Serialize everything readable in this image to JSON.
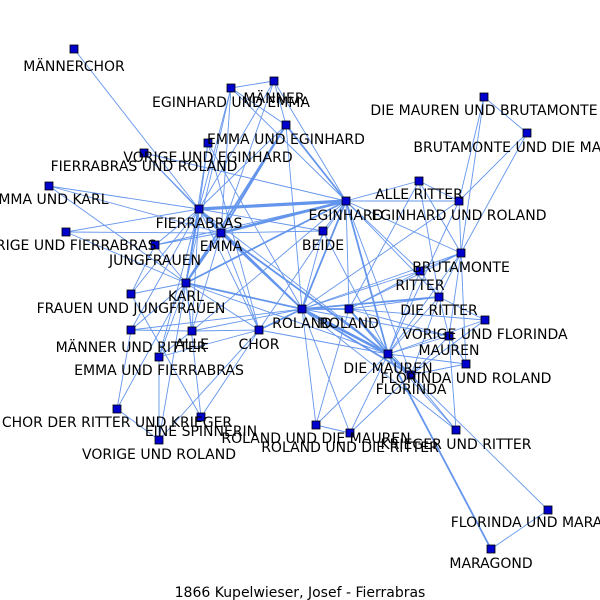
{
  "caption": "1866  Kupelwieser,  Josef  -  Fierrabras",
  "colors": {
    "edge": "#6495ed",
    "node_fill": "#0000cd",
    "node_stroke": "#000000",
    "background": "#ffffff"
  },
  "nodes": [
    {
      "id": "maennerchor",
      "label": "MÄNNERCHOR"
    },
    {
      "id": "maenner",
      "label": "MÄNNER"
    },
    {
      "id": "eginhard_und_emma",
      "label": "EGINHARD UND EMMA"
    },
    {
      "id": "die_mauren_und_brutamonte",
      "label": "DIE MAUREN UND BRUTAMONTE"
    },
    {
      "id": "emma_und_eginhard",
      "label": "EMMA UND EGINHARD"
    },
    {
      "id": "brutamonte_und_die_mauren",
      "label": "BRUTAMONTE UND DIE MAUREN"
    },
    {
      "id": "vorige_und_eginhard",
      "label": "VORIGE UND EGINHARD"
    },
    {
      "id": "fierrabras_und_roland",
      "label": "FIERRABRAS UND ROLAND"
    },
    {
      "id": "alle_ritter",
      "label": "ALLE RITTER"
    },
    {
      "id": "emma_und_karl",
      "label": "EMMA UND KARL"
    },
    {
      "id": "eginhard",
      "label": "EGINHARD"
    },
    {
      "id": "eginhard_und_roland",
      "label": "EGINHARD UND ROLAND"
    },
    {
      "id": "fierrabras",
      "label": "FIERRABRAS"
    },
    {
      "id": "vorige_und_fierrabras",
      "label": "VORIGE UND FIERRABRAS"
    },
    {
      "id": "emma",
      "label": "EMMA"
    },
    {
      "id": "beide",
      "label": "BEIDE"
    },
    {
      "id": "jungfrauen",
      "label": "JUNGFRAUEN"
    },
    {
      "id": "brutamonte",
      "label": "BRUTAMONTE"
    },
    {
      "id": "ritter",
      "label": "RITTER"
    },
    {
      "id": "karl",
      "label": "KARL"
    },
    {
      "id": "frauen_und_jungfrauen",
      "label": "FRAUEN UND JUNGFRAUEN"
    },
    {
      "id": "die_ritter",
      "label": "DIE RITTER"
    },
    {
      "id": "roland1",
      "label": "ROLAND"
    },
    {
      "id": "roland2",
      "label": "ROLAND"
    },
    {
      "id": "vorige_und_florinda",
      "label": "VORIGE UND FLORINDA"
    },
    {
      "id": "maenner_und_ritter",
      "label": "MÄNNER UND RITTER"
    },
    {
      "id": "alle",
      "label": "ALLE"
    },
    {
      "id": "chor",
      "label": "CHOR"
    },
    {
      "id": "mauren",
      "label": "MAUREN"
    },
    {
      "id": "emma_und_fierrabras",
      "label": "EMMA UND FIERRABRAS"
    },
    {
      "id": "die_mauren",
      "label": "DIE MAUREN"
    },
    {
      "id": "florinda_und_roland",
      "label": "FLORINDA UND ROLAND"
    },
    {
      "id": "florinda",
      "label": "FLORINDA"
    },
    {
      "id": "chor_der_ritter_und_krieger",
      "label": "CHOR DER RITTER UND KRIEGER"
    },
    {
      "id": "eine_spinnerin",
      "label": "EINE SPINNERIN"
    },
    {
      "id": "roland_und_die_mauren",
      "label": "ROLAND UND DIE MAUREN"
    },
    {
      "id": "vorige_und_roland",
      "label": "VORIGE UND ROLAND"
    },
    {
      "id": "roland_und_die_ritter",
      "label": "ROLAND UND DIE RITTER"
    },
    {
      "id": "krieger_und_ritter",
      "label": "KRIEGER UND RITTER"
    },
    {
      "id": "florinda_und_maragond",
      "label": "FLORINDA UND MARAGOND"
    },
    {
      "id": "maragond",
      "label": "MARAGOND"
    }
  ],
  "edges": [
    [
      "maennerchor",
      "fierrabras",
      1
    ],
    [
      "maenner",
      "eginhard_und_emma",
      1
    ],
    [
      "maenner",
      "emma_und_eginhard",
      1
    ],
    [
      "maenner",
      "fierrabras",
      1
    ],
    [
      "maenner",
      "emma",
      1
    ],
    [
      "maenner",
      "eginhard",
      1
    ],
    [
      "eginhard_und_emma",
      "emma_und_eginhard",
      1
    ],
    [
      "eginhard_und_emma",
      "fierrabras",
      1
    ],
    [
      "eginhard_und_emma",
      "emma",
      1
    ],
    [
      "eginhard_und_emma",
      "karl",
      1
    ],
    [
      "eginhard_und_emma",
      "eginhard",
      1
    ],
    [
      "die_mauren_und_brutamonte",
      "brutamonte_und_die_mauren",
      1
    ],
    [
      "die_mauren_und_brutamonte",
      "eginhard_und_roland",
      1
    ],
    [
      "die_mauren_und_brutamonte",
      "brutamonte",
      1
    ],
    [
      "brutamonte_und_die_mauren",
      "eginhard_und_roland",
      1
    ],
    [
      "brutamonte_und_die_mauren",
      "brutamonte",
      1
    ],
    [
      "emma_und_eginhard",
      "eginhard",
      2
    ],
    [
      "emma_und_eginhard",
      "emma",
      2
    ],
    [
      "emma_und_eginhard",
      "fierrabras",
      1
    ],
    [
      "emma_und_eginhard",
      "karl",
      2
    ],
    [
      "emma_und_eginhard",
      "roland1",
      1
    ],
    [
      "vorige_und_eginhard",
      "fierrabras",
      1
    ],
    [
      "vorige_und_eginhard",
      "eginhard",
      1
    ],
    [
      "vorige_und_eginhard",
      "emma",
      1
    ],
    [
      "fierrabras_und_roland",
      "fierrabras",
      1
    ],
    [
      "fierrabras_und_roland",
      "karl",
      1
    ],
    [
      "fierrabras_und_roland",
      "roland1",
      1
    ],
    [
      "fierrabras_und_roland",
      "chor",
      1
    ],
    [
      "alle_ritter",
      "eginhard",
      1
    ],
    [
      "alle_ritter",
      "eginhard_und_roland",
      1
    ],
    [
      "alle_ritter",
      "brutamonte",
      1
    ],
    [
      "alle_ritter",
      "die_ritter",
      1
    ],
    [
      "alle_ritter",
      "roland2",
      1
    ],
    [
      "emma_und_karl",
      "fierrabras",
      1
    ],
    [
      "emma_und_karl",
      "karl",
      1
    ],
    [
      "emma_und_karl",
      "emma",
      1
    ],
    [
      "eginhard",
      "fierrabras",
      3.5
    ],
    [
      "eginhard",
      "emma",
      3
    ],
    [
      "eginhard",
      "beide",
      1
    ],
    [
      "eginhard",
      "karl",
      2
    ],
    [
      "eginhard",
      "roland1",
      2
    ],
    [
      "eginhard",
      "roland2",
      1
    ],
    [
      "eginhard",
      "die_mauren",
      2
    ],
    [
      "eginhard",
      "florinda",
      1
    ],
    [
      "eginhard",
      "ritter",
      1
    ],
    [
      "eginhard",
      "brutamonte",
      1
    ],
    [
      "eginhard",
      "eginhard_und_roland",
      1
    ],
    [
      "eginhard",
      "die_ritter",
      1
    ],
    [
      "eginhard",
      "chor",
      1
    ],
    [
      "eginhard",
      "jungfrauen",
      1
    ],
    [
      "eginhard",
      "alle",
      1
    ],
    [
      "eginhard_und_roland",
      "brutamonte",
      1
    ],
    [
      "eginhard_und_roland",
      "roland1",
      1
    ],
    [
      "eginhard_und_roland",
      "die_mauren",
      1
    ],
    [
      "fierrabras",
      "emma",
      3
    ],
    [
      "fierrabras",
      "karl",
      2
    ],
    [
      "fierrabras",
      "jungfrauen",
      1
    ],
    [
      "fierrabras",
      "roland1",
      2
    ],
    [
      "fierrabras",
      "chor",
      1
    ],
    [
      "fierrabras",
      "alle",
      1
    ],
    [
      "fierrabras",
      "maenner_und_ritter",
      1
    ],
    [
      "fierrabras",
      "emma_und_fierrabras",
      1
    ],
    [
      "fierrabras",
      "beide",
      1
    ],
    [
      "fierrabras",
      "vorige_und_fierrabras",
      1
    ],
    [
      "fierrabras",
      "die_mauren",
      1
    ],
    [
      "fierrabras",
      "frauen_und_jungfrauen",
      1
    ],
    [
      "vorige_und_fierrabras",
      "emma",
      1
    ],
    [
      "vorige_und_fierrabras",
      "karl",
      1
    ],
    [
      "emma",
      "karl",
      2
    ],
    [
      "emma",
      "beide",
      1
    ],
    [
      "emma",
      "roland1",
      2
    ],
    [
      "emma",
      "jungfrauen",
      1
    ],
    [
      "emma",
      "chor",
      1
    ],
    [
      "emma",
      "die_mauren",
      2
    ],
    [
      "emma",
      "alle",
      1
    ],
    [
      "beide",
      "roland1",
      1
    ],
    [
      "beide",
      "die_mauren",
      1
    ],
    [
      "jungfrauen",
      "karl",
      1
    ],
    [
      "jungfrauen",
      "frauen_und_jungfrauen",
      1
    ],
    [
      "brutamonte",
      "ritter",
      1
    ],
    [
      "brutamonte",
      "die_ritter",
      1
    ],
    [
      "brutamonte",
      "die_mauren",
      1
    ],
    [
      "brutamonte",
      "mauren",
      1
    ],
    [
      "brutamonte",
      "roland1",
      1
    ],
    [
      "brutamonte",
      "roland2",
      1
    ],
    [
      "brutamonte",
      "florinda_und_roland",
      1
    ],
    [
      "ritter",
      "roland1",
      1
    ],
    [
      "ritter",
      "roland2",
      1
    ],
    [
      "ritter",
      "die_ritter",
      1
    ],
    [
      "ritter",
      "die_mauren",
      1
    ],
    [
      "karl",
      "roland1",
      2
    ],
    [
      "karl",
      "chor",
      1
    ],
    [
      "karl",
      "alle",
      1
    ],
    [
      "karl",
      "maenner_und_ritter",
      1
    ],
    [
      "karl",
      "emma_und_fierrabras",
      1
    ],
    [
      "karl",
      "frauen_und_jungfrauen",
      1
    ],
    [
      "karl",
      "die_mauren",
      1
    ],
    [
      "karl",
      "eine_spinnerin",
      1
    ],
    [
      "karl",
      "vorige_und_roland",
      1
    ],
    [
      "karl",
      "chor_der_ritter_und_krieger",
      1
    ],
    [
      "frauen_und_jungfrauen",
      "eine_spinnerin",
      1
    ],
    [
      "die_ritter",
      "roland1",
      2
    ],
    [
      "die_ritter",
      "roland2",
      1
    ],
    [
      "die_ritter",
      "die_mauren",
      1
    ],
    [
      "die_ritter",
      "vorige_und_florinda",
      1
    ],
    [
      "die_ritter",
      "mauren",
      1
    ],
    [
      "die_ritter",
      "florinda",
      1
    ],
    [
      "roland1",
      "roland2",
      2
    ],
    [
      "roland1",
      "chor",
      2
    ],
    [
      "roland1",
      "die_mauren",
      3
    ],
    [
      "roland1",
      "florinda",
      2
    ],
    [
      "roland1",
      "alle",
      1
    ],
    [
      "roland1",
      "mauren",
      1
    ],
    [
      "roland1",
      "maenner_und_ritter",
      1
    ],
    [
      "roland1",
      "roland_und_die_mauren",
      1
    ],
    [
      "roland1",
      "roland_und_die_ritter",
      1
    ],
    [
      "roland1",
      "krieger_und_ritter",
      1
    ],
    [
      "roland2",
      "die_mauren",
      2
    ],
    [
      "roland2",
      "florinda",
      1
    ],
    [
      "roland2",
      "mauren",
      1
    ],
    [
      "roland2",
      "vorige_und_florinda",
      1
    ],
    [
      "roland2",
      "roland_und_die_mauren",
      1
    ],
    [
      "vorige_und_florinda",
      "florinda",
      1
    ],
    [
      "vorige_und_florinda",
      "die_mauren",
      1
    ],
    [
      "maenner_und_ritter",
      "alle",
      1
    ],
    [
      "maenner_und_ritter",
      "chor_der_ritter_und_krieger",
      1
    ],
    [
      "alle",
      "chor",
      1
    ],
    [
      "alle",
      "emma_und_fierrabras",
      1
    ],
    [
      "chor",
      "die_mauren",
      1
    ],
    [
      "chor",
      "emma_und_fierrabras",
      1
    ],
    [
      "chor",
      "eine_spinnerin",
      1
    ],
    [
      "chor",
      "vorige_und_roland",
      1
    ],
    [
      "mauren",
      "die_mauren",
      1
    ],
    [
      "mauren",
      "florinda",
      1
    ],
    [
      "mauren",
      "krieger_und_ritter",
      1
    ],
    [
      "mauren",
      "florinda_und_roland",
      1
    ],
    [
      "die_mauren",
      "florinda",
      2
    ],
    [
      "die_mauren",
      "florinda_und_roland",
      1
    ],
    [
      "die_mauren",
      "roland_und_die_mauren",
      1
    ],
    [
      "die_mauren",
      "roland_und_die_ritter",
      1
    ],
    [
      "die_mauren",
      "maragond",
      2
    ],
    [
      "die_mauren",
      "krieger_und_ritter",
      1
    ],
    [
      "florinda",
      "florinda_und_roland",
      1
    ],
    [
      "florinda",
      "florinda_und_maragond",
      1
    ],
    [
      "florinda",
      "krieger_und_ritter",
      1
    ],
    [
      "florinda",
      "roland_und_die_ritter",
      1
    ],
    [
      "florinda_und_maragond",
      "maragond",
      1
    ],
    [
      "roland_und_die_mauren",
      "roland_und_die_ritter",
      1
    ],
    [
      "chor_der_ritter_und_krieger",
      "vorige_und_roland",
      1
    ],
    [
      "emma_und_fierrabras",
      "vorige_und_roland",
      1
    ]
  ]
}
